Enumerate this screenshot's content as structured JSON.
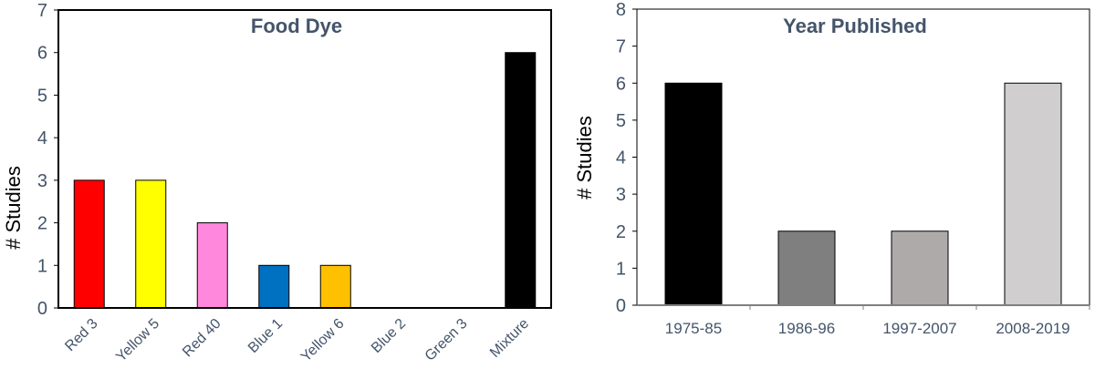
{
  "chart_data": [
    {
      "type": "bar",
      "title": "Food Dye",
      "ylabel": "# Studies",
      "xlabel": "",
      "ylim": [
        0,
        7
      ],
      "yticks": [
        0,
        1,
        2,
        3,
        4,
        5,
        6,
        7
      ],
      "grid": false,
      "categories": [
        "Red 3",
        "Yellow 5",
        "Red 40",
        "Blue 1",
        "Yellow 6",
        "Blue 2",
        "Green 3",
        "Mixture"
      ],
      "values": [
        3,
        3,
        2,
        1,
        1,
        0,
        0,
        6
      ],
      "colors": [
        "#ff0000",
        "#ffff00",
        "#ff88dd",
        "#0070c0",
        "#ffc000",
        "#ffffff",
        "#ffffff",
        "#000000"
      ]
    },
    {
      "type": "bar",
      "title": "Year Published",
      "ylabel": "# Studies",
      "xlabel": "",
      "ylim": [
        0,
        8
      ],
      "yticks": [
        0,
        1,
        2,
        3,
        4,
        5,
        6,
        7,
        8
      ],
      "grid": false,
      "categories": [
        "1975-85",
        "1986-96",
        "1997-2007",
        "2008-2019"
      ],
      "values": [
        6,
        2,
        2,
        6
      ],
      "colors": [
        "#000000",
        "#7f7f7f",
        "#aeaaaa",
        "#d0cece"
      ]
    }
  ]
}
